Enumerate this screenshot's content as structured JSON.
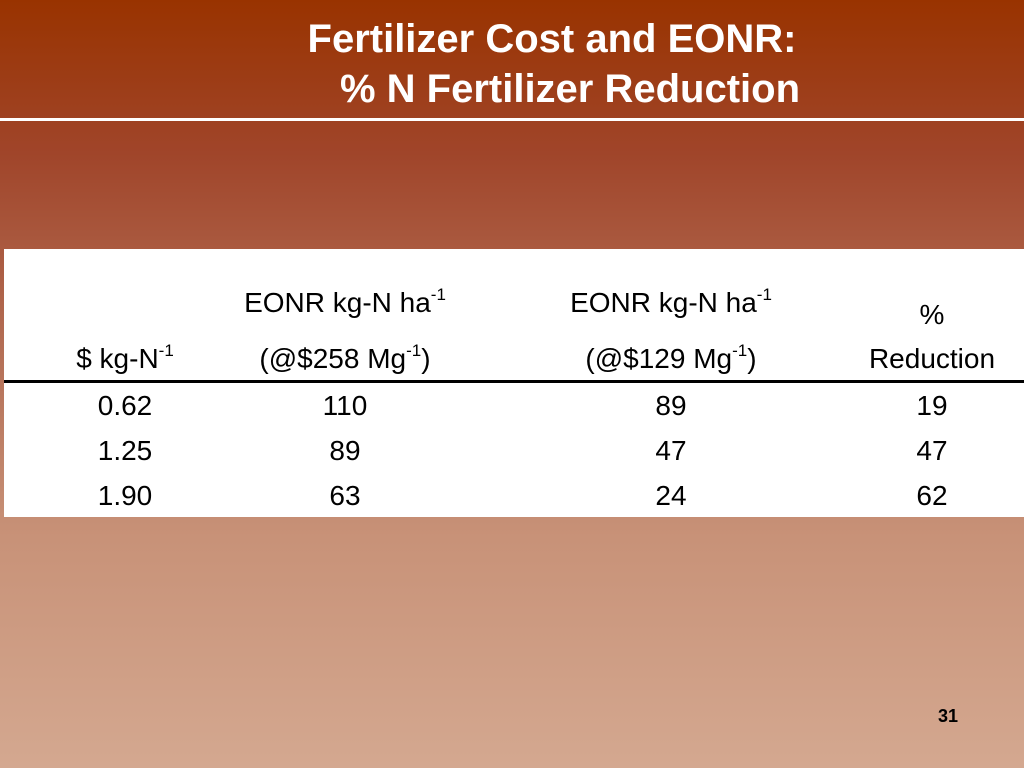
{
  "slide": {
    "title_line1": "Fertilizer Cost and EONR:",
    "title_line2": "% N Fertilizer Reduction",
    "page_number": "31"
  },
  "table": {
    "header": {
      "col1": {
        "line1": "EONR kg-N ha",
        "line1_sup": "-1",
        "line2_pre": "(@$258 Mg",
        "line2_sup": "-1",
        "line2_post": ")"
      },
      "col2": {
        "line1": "EONR kg-N ha",
        "line1_sup": "-1",
        "line2_pre": "(@$129 Mg",
        "line2_sup": "-1",
        "line2_post": ")"
      },
      "col0": {
        "text": "$ kg-N",
        "sup": "-1"
      },
      "col3": {
        "line1": "%",
        "line2": "Reduction"
      }
    },
    "rows": [
      {
        "cost": "0.62",
        "eonr_258": "110",
        "eonr_129": "89",
        "reduction": "19"
      },
      {
        "cost": "1.25",
        "eonr_258": "89",
        "eonr_129": "47",
        "reduction": "47"
      },
      {
        "cost": "1.90",
        "eonr_258": "63",
        "eonr_129": "24",
        "reduction": "62"
      }
    ]
  }
}
